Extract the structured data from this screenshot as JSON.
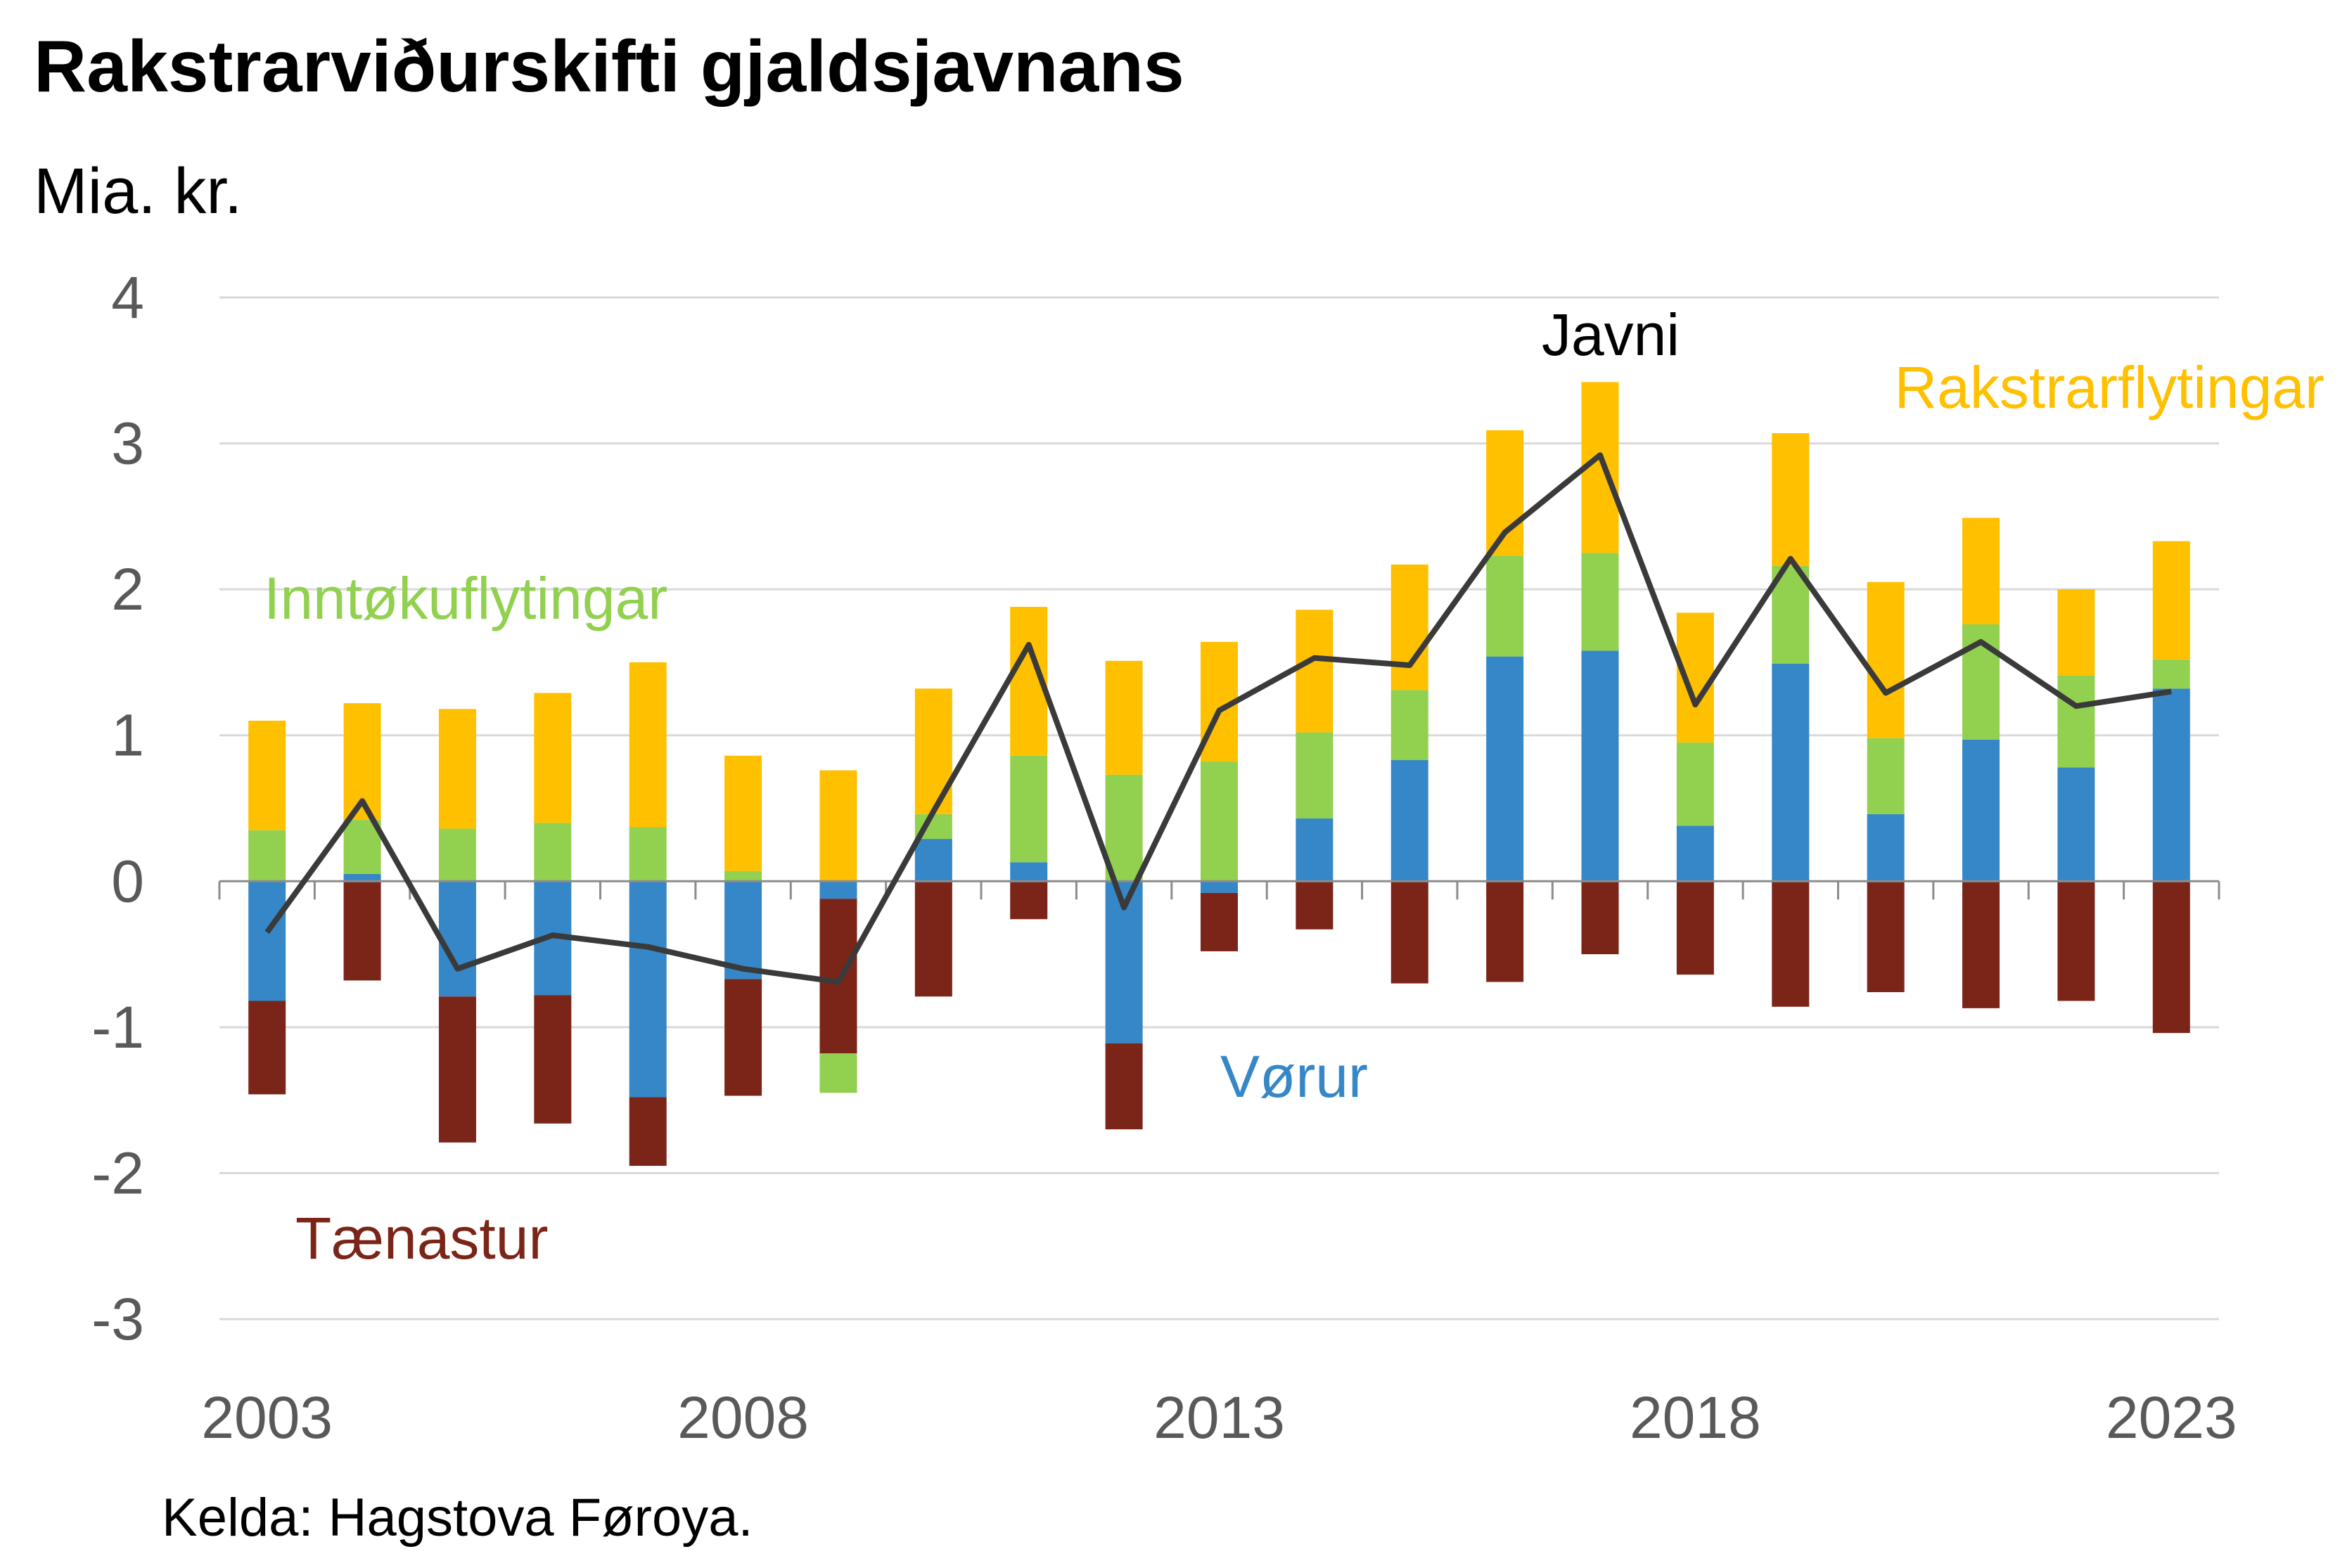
{
  "chart_data": {
    "type": "bar",
    "title": "Rakstrarviðurskifti gjaldsjavnans",
    "ylabel": "Mia. kr.",
    "source": "Kelda: Hagstova Føroya.",
    "ylim": [
      -3,
      4
    ],
    "yticks": [
      4,
      3,
      2,
      1,
      0,
      -1,
      -2,
      -3
    ],
    "categories": [
      "2003",
      "2004",
      "2005",
      "2006",
      "2007",
      "2008",
      "2009",
      "2010",
      "2011",
      "2012",
      "2013",
      "2014",
      "2015",
      "2016",
      "2017",
      "2018",
      "2019",
      "2020",
      "2021",
      "2022",
      "2023"
    ],
    "xtick_labels": [
      "2003",
      "2008",
      "2013",
      "2018",
      "2023"
    ],
    "grid": true,
    "stacked": true,
    "series": [
      {
        "name": "Vørur",
        "color": "#3587C8",
        "type": "bar",
        "values": [
          -0.82,
          0.05,
          -0.79,
          -0.78,
          -1.48,
          -0.67,
          -0.12,
          0.29,
          0.13,
          -1.11,
          -0.08,
          0.43,
          0.83,
          1.54,
          1.58,
          0.38,
          1.49,
          0.46,
          0.97,
          0.78,
          1.32
        ]
      },
      {
        "name": "Tænastur",
        "color": "#7B2518",
        "type": "bar",
        "values": [
          -0.64,
          -0.68,
          -1.0,
          -0.88,
          -0.47,
          -0.8,
          -1.06,
          -0.79,
          -0.26,
          -0.59,
          -0.4,
          -0.33,
          -0.7,
          -0.69,
          -0.5,
          -0.64,
          -0.86,
          -0.76,
          -0.87,
          -0.82,
          -1.04
        ]
      },
      {
        "name": "Inntøkuflytingar",
        "color": "#92D050",
        "type": "bar",
        "values": [
          0.35,
          0.37,
          0.36,
          0.4,
          0.37,
          0.07,
          -0.27,
          0.17,
          0.73,
          0.73,
          0.82,
          0.59,
          0.48,
          0.69,
          0.67,
          0.57,
          0.67,
          0.52,
          0.79,
          0.63,
          0.2
        ]
      },
      {
        "name": "Rakstrarflytingar",
        "color": "#FFC000",
        "type": "bar",
        "values": [
          0.75,
          0.8,
          0.82,
          0.89,
          1.13,
          0.79,
          0.76,
          0.86,
          1.02,
          0.78,
          0.82,
          0.84,
          0.86,
          0.86,
          1.17,
          0.89,
          0.91,
          1.07,
          0.73,
          0.59,
          0.81
        ]
      },
      {
        "name": "Javni",
        "color": "#3A3A3A",
        "type": "line",
        "values": [
          -0.35,
          0.55,
          -0.6,
          -0.37,
          -0.45,
          -0.6,
          -0.69,
          0.48,
          1.62,
          -0.18,
          1.17,
          1.53,
          1.48,
          2.39,
          2.92,
          1.21,
          2.21,
          1.29,
          1.64,
          1.2,
          1.3
        ]
      }
    ]
  }
}
